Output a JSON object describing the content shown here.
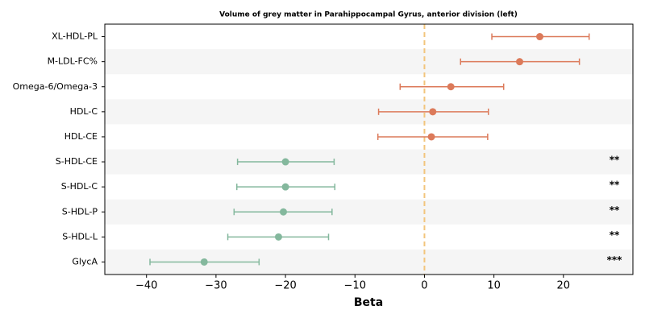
{
  "chart_data": {
    "type": "forest",
    "title": "Volume of grey matter in Parahippocampal Gyrus, anterior division (left)",
    "xlabel": "Beta",
    "categories": [
      "XL-HDL-PL",
      "M-LDL-FC%",
      "Omega-6/Omega-3",
      "HDL-C",
      "HDL-CE",
      "S-HDL-CE",
      "S-HDL-C",
      "S-HDL-P",
      "S-HDL-L",
      "GlycA"
    ],
    "values": [
      16.6,
      13.7,
      3.8,
      1.2,
      1.0,
      -20.0,
      -20.0,
      -20.3,
      -21.0,
      -31.7
    ],
    "ci_low": [
      9.7,
      5.2,
      -3.5,
      -6.6,
      -6.7,
      -26.9,
      -27.0,
      -27.4,
      -28.3,
      -39.5
    ],
    "ci_high": [
      23.7,
      22.3,
      11.4,
      9.2,
      9.1,
      -13.0,
      -12.9,
      -13.3,
      -13.8,
      -23.8
    ],
    "colors": [
      "#dc7a5a",
      "#dc7a5a",
      "#dc7a5a",
      "#dc7a5a",
      "#dc7a5a",
      "#84b89d",
      "#84b89d",
      "#84b89d",
      "#84b89d",
      "#84b89d"
    ],
    "significance": [
      null,
      null,
      null,
      null,
      null,
      "**",
      "**",
      "**",
      "**",
      "***"
    ],
    "reference_line": 0,
    "reference_color": "#f2c57c",
    "xlim": [
      -46,
      30
    ],
    "xticks": [
      {
        "value": -40,
        "label": "−40"
      },
      {
        "value": -30,
        "label": "−30"
      },
      {
        "value": -20,
        "label": "−20"
      },
      {
        "value": -10,
        "label": "−10"
      },
      0,
      10,
      20
    ]
  }
}
